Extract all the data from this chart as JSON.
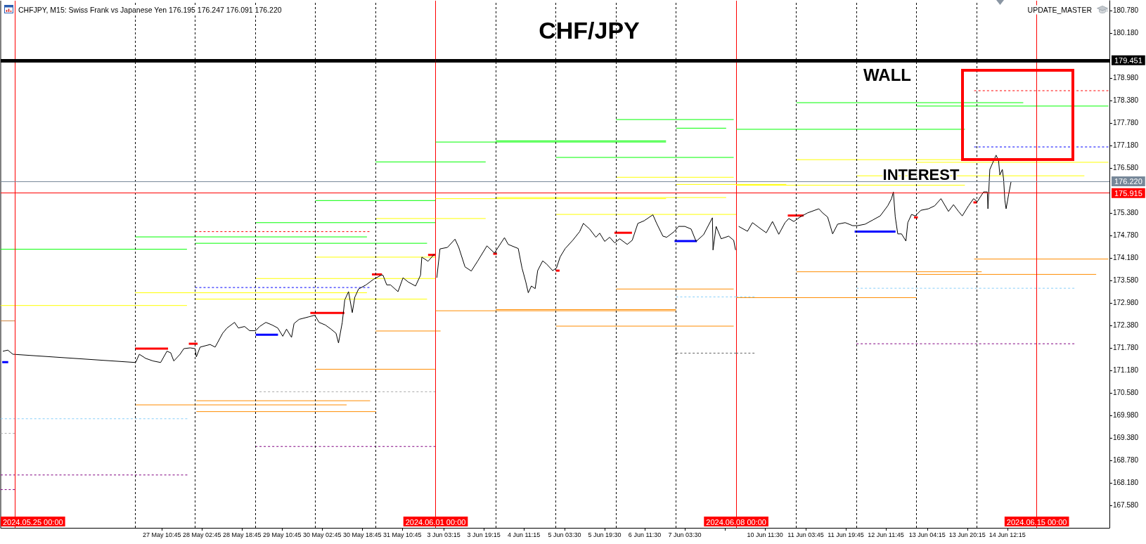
{
  "chart_data": [
    {
      "type": "line",
      "annotations": [
        "CHFJPY, M15: Swiss Frank vs Japanese Yen 176.195 176.247 176.091 176.220"
      ],
      "xlim": [
        "2024-05-24T18:24",
        "2024-06-01T00:00"
      ],
      "ylim": [
        166.98,
        181.04
      ],
      "tick_labels": "x",
      "grid": false,
      "marker": "none",
      "line_style": "solid",
      "xticks": [
        {
          "value": "2024-05-27T10:45",
          "label": "27 May 10:45"
        },
        {
          "value": "2024-05-28T02:45",
          "label": "28 May 02:45"
        },
        {
          "value": "2024-05-28T18:45",
          "label": "28 May 18:45"
        },
        {
          "value": "2024-05-29T10:45",
          "label": "29 May 10:45"
        },
        {
          "value": "2024-05-30T02:45",
          "label": "30 May 02:45"
        },
        {
          "value": "2024-05-30T18:45",
          "label": "30 May 18:45"
        },
        {
          "value": "2024-05-31T10:45",
          "label": "31 May 10:45"
        }
      ],
      "ref_lines": [
        {
          "axis": "x",
          "value": "2024-05-27T00:00",
          "color": "#000000",
          "line_style": "dashed"
        },
        {
          "axis": "x",
          "value": "2024-05-28T00:00",
          "color": "#000000",
          "line_style": "dashed"
        },
        {
          "axis": "x",
          "value": "2024-05-29T00:00",
          "color": "#000000",
          "line_style": "dashed"
        },
        {
          "axis": "x",
          "value": "2024-05-30T00:00",
          "color": "#000000",
          "line_style": "dashed"
        },
        {
          "axis": "x",
          "value": "2024-05-31T00:00",
          "color": "#000000",
          "line_style": "dashed"
        },
        {
          "axis": "x",
          "value": "2024-05-25T00:00",
          "label": "2024.05.25 00:00",
          "color": "#ff0000"
        },
        {
          "axis": "x",
          "value": "2024-06-01T00:00",
          "label": "2024.06.01 00:00",
          "color": "#ff0000"
        },
        {
          "axis": "y",
          "value": 179.451,
          "color": "#000000"
        },
        {
          "axis": "y",
          "value": 176.22,
          "color": "#778899"
        },
        {
          "axis": "y",
          "value": 175.915,
          "color": "#ff0000"
        }
      ],
      "series": [
        {
          "color": "#00ff00",
          "x": [
            "2024-05-24T18:24",
            "2024-05-27T20:45"
          ],
          "values": [
            174.41,
            174.41
          ]
        },
        {
          "color": "#00ff00",
          "x": [
            "2024-05-27T00:00",
            "2024-05-30T20:36"
          ],
          "values": [
            174.74,
            174.74
          ]
        },
        {
          "color": "#00ff00",
          "x": [
            "2024-05-28T00:00",
            "2024-05-31T20:36"
          ],
          "values": [
            174.57,
            174.57
          ]
        },
        {
          "color": "#00ff00",
          "x": [
            "2024-05-29T00:00",
            "2024-06-01T00:00"
          ],
          "values": [
            175.12,
            175.12
          ]
        },
        {
          "color": "#00ff00",
          "x": [
            "2024-05-30T00:00",
            "2024-06-01T00:00"
          ],
          "values": [
            175.71,
            175.71
          ]
        },
        {
          "color": "#00ff00",
          "x": [
            "2024-05-31T00:00",
            "2024-06-01T00:00"
          ],
          "values": [
            176.74,
            176.74
          ]
        },
        {
          "color": "#ffff00",
          "x": [
            "2024-05-24T18:24",
            "2024-05-27T20:45"
          ],
          "values": [
            172.91,
            172.91
          ]
        },
        {
          "color": "#ffff00",
          "x": [
            "2024-05-27T00:00",
            "2024-05-30T20:36"
          ],
          "values": [
            173.25,
            173.25
          ]
        },
        {
          "color": "#ffff00",
          "x": [
            "2024-05-28T00:00",
            "2024-05-31T20:36"
          ],
          "values": [
            173.08,
            173.08
          ]
        },
        {
          "color": "#ffff00",
          "x": [
            "2024-05-29T00:00",
            "2024-06-01T00:00"
          ],
          "values": [
            173.63,
            173.63
          ]
        },
        {
          "color": "#ffff00",
          "x": [
            "2024-05-30T00:00",
            "2024-06-01T00:00"
          ],
          "values": [
            174.2,
            174.2
          ]
        },
        {
          "color": "#ffff00",
          "x": [
            "2024-05-31T00:00",
            "2024-06-01T00:00"
          ],
          "values": [
            175.23,
            175.23
          ]
        },
        {
          "color": "#cd853f",
          "x": [
            "2024-05-24T18:24",
            "2024-05-25T00:00"
          ],
          "values": [
            172.5,
            172.5
          ]
        },
        {
          "color": "#ff8c00",
          "x": [
            "2024-05-31T00:00",
            "2024-06-01T00:00"
          ],
          "values": [
            172.23,
            172.23
          ]
        },
        {
          "color": "#ff8c00",
          "x": [
            "2024-05-30T00:00",
            "2024-06-01T00:00"
          ],
          "values": [
            171.21,
            171.21
          ]
        },
        {
          "color": "#ff8c00",
          "x": [
            "2024-05-28T00:30",
            "2024-05-30T21:54"
          ],
          "values": [
            170.37,
            170.37
          ]
        },
        {
          "color": "#ff8c00",
          "x": [
            "2024-05-27T00:00",
            "2024-05-30T12:30"
          ],
          "values": [
            170.26,
            170.26
          ]
        },
        {
          "color": "#ff8c00",
          "x": [
            "2024-05-28T00:30",
            "2024-05-31T00:12"
          ],
          "values": [
            170.08,
            170.08
          ]
        },
        {
          "color": "#ff0000",
          "line_style": "dashed",
          "x": [
            "2024-05-28T00:00",
            "2024-05-30T21:36"
          ],
          "values": [
            174.88,
            174.88
          ]
        },
        {
          "color": "#0000ff",
          "line_style": "dashed",
          "x": [
            "2024-05-28T00:00",
            "2024-05-30T21:36"
          ],
          "values": [
            173.39,
            173.39
          ]
        },
        {
          "color": "#87cefa",
          "line_style": "dashed",
          "x": [
            "2024-05-24T18:24",
            "2024-05-27T20:54"
          ],
          "values": [
            169.89,
            169.89
          ]
        },
        {
          "color": "#a9a9a9",
          "line_style": "dashed",
          "x": [
            "2024-05-24T18:24",
            "2024-05-25T00:00"
          ],
          "values": [
            169.5,
            169.5
          ]
        },
        {
          "color": "#a9a9a9",
          "line_style": "dashed",
          "x": [
            "2024-05-29T00:00",
            "2024-06-01T00:00"
          ],
          "values": [
            170.61,
            170.61
          ]
        },
        {
          "color": "#800080",
          "line_style": "dashed",
          "x": [
            "2024-05-29T00:00",
            "2024-06-01T00:00"
          ],
          "values": [
            169.15,
            169.15
          ]
        },
        {
          "color": "#800080",
          "line_style": "dashed",
          "x": [
            "2024-05-24T18:24",
            "2024-05-27T20:54"
          ],
          "values": [
            168.39,
            168.39
          ]
        },
        {
          "color": "#800080",
          "line_style": "dashed",
          "x": [
            "2024-05-24T18:24",
            "2024-05-25T00:00"
          ],
          "values": [
            168,
            168
          ]
        },
        {
          "color": "#0000ff",
          "x": [
            "2024-05-24T19:00",
            "2024-05-24T21:24"
          ],
          "values": [
            171.4,
            171.4
          ]
        },
        {
          "color": "#ff0000",
          "x": [
            "2024-05-27T00:00",
            "2024-05-27T13:12"
          ],
          "values": [
            171.76,
            171.76
          ]
        },
        {
          "color": "#ff0000",
          "x": [
            "2024-05-27T21:30",
            "2024-05-28T01:00"
          ],
          "values": [
            171.89,
            171.89
          ]
        },
        {
          "color": "#0000ff",
          "x": [
            "2024-05-29T00:12",
            "2024-05-29T09:06"
          ],
          "values": [
            172.13,
            172.13
          ]
        },
        {
          "color": "#ff0000",
          "x": [
            "2024-05-29T22:00",
            "2024-05-30T11:36"
          ],
          "values": [
            172.71,
            172.71
          ]
        },
        {
          "color": "#ff0000",
          "x": [
            "2024-05-30T22:36",
            "2024-05-31T02:36"
          ],
          "values": [
            173.74,
            173.74
          ]
        },
        {
          "color": "#ff0000",
          "x": [
            "2024-05-31T21:00",
            "2024-06-01T00:00"
          ],
          "values": [
            174.26,
            174.26
          ]
        },
        {
          "color": "#000000",
          "x": [
            "2024-05-24T19:15",
            "2024-05-24T21:15",
            "2024-05-24T23:15",
            "2024-05-27T00:15",
            "2024-05-27T01:45",
            "2024-05-27T04:15",
            "2024-05-27T07:15",
            "2024-05-27T10:15",
            "2024-05-27T12:45",
            "2024-05-27T14:15",
            "2024-05-27T15:30",
            "2024-05-27T18:00",
            "2024-05-27T19:30",
            "2024-05-27T22:00",
            "2024-05-28T00:00",
            "2024-05-28T00:30",
            "2024-05-28T02:00",
            "2024-05-28T06:00",
            "2024-05-28T08:00",
            "2024-05-28T11:00",
            "2024-05-28T12:45",
            "2024-05-28T15:45",
            "2024-05-28T17:15",
            "2024-05-28T19:45",
            "2024-05-28T21:45",
            "2024-05-29T00:15",
            "2024-05-29T01:45",
            "2024-05-29T04:15",
            "2024-05-29T06:45",
            "2024-05-29T09:00",
            "2024-05-29T11:00",
            "2024-05-29T12:30",
            "2024-05-29T14:30",
            "2024-05-29T15:30",
            "2024-05-29T17:30",
            "2024-05-29T21:30",
            "2024-05-29T23:45",
            "2024-05-30T01:30",
            "2024-05-30T04:00",
            "2024-05-30T06:15",
            "2024-05-30T08:15",
            "2024-05-30T09:15",
            "2024-05-30T10:45",
            "2024-05-30T11:45",
            "2024-05-30T13:15",
            "2024-05-30T14:45",
            "2024-05-30T15:45",
            "2024-05-30T17:15",
            "2024-05-30T20:15",
            "2024-05-30T23:15",
            "2024-05-31T02:15",
            "2024-05-31T03:00",
            "2024-05-31T04:30",
            "2024-05-31T06:00",
            "2024-05-31T09:00",
            "2024-05-31T11:00",
            "2024-05-31T13:00",
            "2024-05-31T16:00",
            "2024-05-31T18:00",
            "2024-05-31T18:30",
            "2024-05-31T21:00",
            "2024-05-31T23:30"
          ],
          "values": [
            171.69,
            171.72,
            171.61,
            171.39,
            171.61,
            171.5,
            171.43,
            171.39,
            171.69,
            171.65,
            171.43,
            171.61,
            171.76,
            171.78,
            171.76,
            171.54,
            171.8,
            171.87,
            171.8,
            172.17,
            172.31,
            172.46,
            172.31,
            172.35,
            172.24,
            172.24,
            172.35,
            172.46,
            172.39,
            172.31,
            172.09,
            172.28,
            172.06,
            172.43,
            172.54,
            172.61,
            172.65,
            172.46,
            172.39,
            172.28,
            172.17,
            171.91,
            172.46,
            173.06,
            173.28,
            172.72,
            173.13,
            173.35,
            173.46,
            173.61,
            173.72,
            173.72,
            173.46,
            173.46,
            173.28,
            173.65,
            173.54,
            173.43,
            173.72,
            174.2,
            174.09,
            174.28
          ]
        }
      ]
    },
    {
      "type": "line",
      "title": "CHF/JPY",
      "xlim": [
        "2024-06-03T00:00",
        "2024-06-08T00:00"
      ],
      "ylim": [
        166.98,
        181.04
      ],
      "tick_labels": "x",
      "grid": false,
      "marker": "none",
      "line_style": "solid",
      "xticks": [
        {
          "value": "2024-06-03T03:15",
          "label": "3 Jun 03:15"
        },
        {
          "value": "2024-06-03T19:15",
          "label": "3 Jun 19:15"
        },
        {
          "value": "2024-06-04T11:15",
          "label": "4 Jun 11:15"
        },
        {
          "value": "2024-06-05T03:30",
          "label": "5 Jun 03:30"
        },
        {
          "value": "2024-06-05T19:30",
          "label": "5 Jun 19:30"
        },
        {
          "value": "2024-06-06T11:30",
          "label": "6 Jun 11:30"
        },
        {
          "value": "2024-06-07T03:30",
          "label": "7 Jun 03:30"
        },
        {
          "value": "2024-06-07T19:30",
          "label": null
        }
      ],
      "ref_lines": [
        {
          "axis": "x",
          "value": "2024-06-04T00:00",
          "color": "#000000",
          "line_style": "dashed"
        },
        {
          "axis": "x",
          "value": "2024-06-05T00:00",
          "color": "#000000",
          "line_style": "dashed"
        },
        {
          "axis": "x",
          "value": "2024-06-06T00:00",
          "color": "#000000",
          "line_style": "dashed"
        },
        {
          "axis": "x",
          "value": "2024-06-07T00:00",
          "color": "#000000",
          "line_style": "dashed"
        },
        {
          "axis": "x",
          "value": "2024-06-08T00:00",
          "label": "2024.06.08 00:00",
          "color": "#ff0000"
        },
        {
          "axis": "y",
          "value": 179.451,
          "color": "#000000"
        },
        {
          "axis": "y",
          "value": 176.22,
          "color": "#778899"
        },
        {
          "axis": "y",
          "value": 175.915,
          "color": "#ff0000"
        }
      ],
      "series": [
        {
          "color": "#00ff00",
          "x": [
            "2024-06-03T00:00",
            "2024-06-03T20:00"
          ],
          "values": [
            176.74,
            176.74
          ]
        },
        {
          "color": "#00ff00",
          "x": [
            "2024-06-03T00:00",
            "2024-06-06T20:00"
          ],
          "values": [
            177.27,
            177.27
          ]
        },
        {
          "color": "#00ff00",
          "x": [
            "2024-06-04T00:00",
            "2024-06-06T20:00"
          ],
          "values": [
            177.3,
            177.3
          ]
        },
        {
          "color": "#00ff00",
          "x": [
            "2024-06-06T00:00",
            "2024-06-07T23:00"
          ],
          "values": [
            177.87,
            177.87
          ]
        },
        {
          "color": "#00ff00",
          "x": [
            "2024-06-07T00:00",
            "2024-06-07T20:00"
          ],
          "values": [
            177.64,
            177.64
          ]
        },
        {
          "color": "#00ff00",
          "x": [
            "2024-06-05T00:00",
            "2024-06-07T23:00"
          ],
          "values": [
            176.86,
            176.86
          ]
        },
        {
          "color": "#ffff00",
          "x": [
            "2024-06-03T00:00",
            "2024-06-03T20:00"
          ],
          "values": [
            175.23,
            175.23
          ]
        },
        {
          "color": "#ffff00",
          "x": [
            "2024-06-04T00:00",
            "2024-06-07T20:00"
          ],
          "values": [
            175.79,
            175.79
          ]
        },
        {
          "color": "#ffff00",
          "x": [
            "2024-06-03T00:00",
            "2024-06-06T20:00"
          ],
          "values": [
            175.76,
            175.76
          ]
        },
        {
          "color": "#ffff00",
          "x": [
            "2024-06-05T00:00",
            "2024-06-08T00:00"
          ],
          "values": [
            175.34,
            175.34
          ]
        },
        {
          "color": "#ffff00",
          "x": [
            "2024-06-06T00:00",
            "2024-06-07T23:00"
          ],
          "values": [
            176.33,
            176.33
          ]
        },
        {
          "color": "#ffff00",
          "x": [
            "2024-06-07T00:00",
            "2024-06-08T00:00"
          ],
          "values": [
            176.14,
            176.14
          ]
        },
        {
          "color": "#ff8c00",
          "x": [
            "2024-06-03T00:00",
            "2024-06-03T02:00"
          ],
          "values": [
            172.23,
            172.23
          ]
        },
        {
          "color": "#ff8c00",
          "x": [
            "2024-06-03T00:00",
            "2024-06-07T00:00"
          ],
          "values": [
            172.77,
            172.77
          ]
        },
        {
          "color": "#ff8c00",
          "x": [
            "2024-06-04T00:00",
            "2024-06-07T00:00"
          ],
          "values": [
            172.8,
            172.8
          ]
        },
        {
          "color": "#ff8c00",
          "x": [
            "2024-06-05T00:00",
            "2024-06-07T23:00"
          ],
          "values": [
            172.36,
            172.36
          ]
        },
        {
          "color": "#ff8c00",
          "x": [
            "2024-06-06T00:00",
            "2024-06-07T23:00"
          ],
          "values": [
            173.35,
            173.35
          ]
        },
        {
          "color": "#87cefa",
          "line_style": "dashed",
          "x": [
            "2024-06-07T00:00",
            "2024-06-08T00:00"
          ],
          "values": [
            173.14,
            173.14
          ]
        },
        {
          "color": "#606060",
          "line_style": "dashed",
          "x": [
            "2024-06-07T00:00",
            "2024-06-08T00:00"
          ],
          "values": [
            171.64,
            171.64
          ]
        },
        {
          "color": "#ff0000",
          "x": [
            "2024-06-03T23:00",
            "2024-06-04T00:30"
          ],
          "values": [
            174.29,
            174.29
          ]
        },
        {
          "color": "#ff0000",
          "x": [
            "2024-06-05T00:00",
            "2024-06-05T01:30"
          ],
          "values": [
            173.84,
            173.84
          ]
        },
        {
          "color": "#ff0000",
          "x": [
            "2024-06-05T23:24",
            "2024-06-06T06:24"
          ],
          "values": [
            174.85,
            174.85
          ]
        },
        {
          "color": "#0000ff",
          "x": [
            "2024-06-06T23:24",
            "2024-06-07T08:18"
          ],
          "values": [
            174.63,
            174.63
          ]
        },
        {
          "color": "#000000",
          "x": [
            "2024-06-03T00:30",
            "2024-06-03T01:45",
            "2024-06-03T04:45",
            "2024-06-03T07:45",
            "2024-06-03T09:15",
            "2024-06-03T11:45",
            "2024-06-03T14:15",
            "2024-06-03T16:45",
            "2024-06-03T20:30",
            "2024-06-03T23:30",
            "2024-06-04T03:30",
            "2024-06-04T05:00",
            "2024-06-04T09:00",
            "2024-06-04T10:30",
            "2024-06-04T12:00",
            "2024-06-04T13:00",
            "2024-06-04T14:15",
            "2024-06-04T15:45",
            "2024-06-04T16:45",
            "2024-06-04T18:45",
            "2024-06-04T20:15",
            "2024-06-04T22:45",
            "2024-06-05T00:15",
            "2024-06-05T01:45",
            "2024-06-05T03:45",
            "2024-06-05T06:45",
            "2024-06-05T09:30",
            "2024-06-05T11:00",
            "2024-06-05T13:30",
            "2024-06-05T16:00",
            "2024-06-05T17:30",
            "2024-06-05T19:30",
            "2024-06-05T21:30",
            "2024-06-05T23:30",
            "2024-06-06T01:30",
            "2024-06-06T04:30",
            "2024-06-06T06:30",
            "2024-06-06T08:45",
            "2024-06-06T11:15",
            "2024-06-06T14:45",
            "2024-06-06T16:15",
            "2024-06-06T18:45",
            "2024-06-06T20:15",
            "2024-06-06T23:15",
            "2024-06-07T01:00",
            "2024-06-07T03:30",
            "2024-06-07T06:00",
            "2024-06-07T08:00",
            "2024-06-07T11:00",
            "2024-06-07T14:30",
            "2024-06-07T14:45",
            "2024-06-07T16:00",
            "2024-06-07T18:00",
            "2024-06-07T21:00",
            "2024-06-07T23:00",
            "2024-06-07T23:45"
          ],
          "values": [
            173.65,
            174.42,
            174.46,
            174.68,
            174.46,
            173.94,
            173.83,
            174.09,
            174.5,
            174.31,
            174.72,
            174.54,
            174.43,
            173.91,
            173.54,
            173.25,
            173.43,
            173.36,
            173.84,
            174.1,
            174.02,
            173.84,
            173.91,
            174.21,
            174.43,
            174.65,
            174.88,
            175.1,
            174.95,
            174.73,
            174.84,
            174.62,
            174.73,
            174.58,
            174.69,
            174.54,
            174.65,
            175.1,
            175.17,
            175.33,
            175.1,
            174.76,
            174.73,
            174.88,
            175.02,
            175.02,
            174.95,
            174.62,
            174.8,
            175.25,
            174.39,
            175.02,
            174.69,
            174.76,
            174.65,
            174.39
          ]
        }
      ]
    },
    {
      "type": "line",
      "annotations": [
        "UPDATE_MASTER",
        "WALL",
        "INTEREST"
      ],
      "xlim": [
        "2024-06-10T00:00",
        "2024-06-16T05:00"
      ],
      "ylim": [
        166.98,
        181.04
      ],
      "grid": false,
      "marker": "none",
      "line_style": "solid",
      "xticks": [
        {
          "value": "2024-06-10T11:30",
          "label": "10 Jun 11:30"
        },
        {
          "value": "2024-06-11T03:45",
          "label": "11 Jun 03:45"
        },
        {
          "value": "2024-06-11T19:45",
          "label": "11 Jun 19:45"
        },
        {
          "value": "2024-06-12T11:45",
          "label": "12 Jun 11:45"
        },
        {
          "value": "2024-06-13T04:15",
          "label": "13 Jun 04:15"
        },
        {
          "value": "2024-06-13T20:15",
          "label": "13 Jun 20:15"
        },
        {
          "value": "2024-06-14T12:15",
          "label": "14 Jun 12:15"
        }
      ],
      "yticks": [
        {
          "value": 167.58,
          "label": "167.580"
        },
        {
          "value": 168.18,
          "label": "168.180"
        },
        {
          "value": 168.78,
          "label": "168.780"
        },
        {
          "value": 169.38,
          "label": "169.380"
        },
        {
          "value": 169.98,
          "label": "169.980"
        },
        {
          "value": 170.58,
          "label": "170.580"
        },
        {
          "value": 171.18,
          "label": "171.180"
        },
        {
          "value": 171.78,
          "label": "171.780"
        },
        {
          "value": 172.38,
          "label": "172.380"
        },
        {
          "value": 172.98,
          "label": "172.980"
        },
        {
          "value": 173.58,
          "label": "173.580"
        },
        {
          "value": 174.18,
          "label": "174.180"
        },
        {
          "value": 174.78,
          "label": "174.780"
        },
        {
          "value": 175.38,
          "label": "175.380"
        },
        {
          "value": 176.58,
          "label": "176.580"
        },
        {
          "value": 177.18,
          "label": "177.180"
        },
        {
          "value": 177.78,
          "label": "177.780"
        },
        {
          "value": 178.38,
          "label": "178.380"
        },
        {
          "value": 178.98,
          "label": "178.980"
        },
        {
          "value": 180.18,
          "label": "180.180"
        },
        {
          "value": 180.78,
          "label": "180.780"
        }
      ],
      "ref_lines": [
        {
          "axis": "x",
          "value": "2024-06-11T00:00",
          "color": "#000000",
          "line_style": "dashed"
        },
        {
          "axis": "x",
          "value": "2024-06-12T00:00",
          "color": "#000000",
          "line_style": "dashed"
        },
        {
          "axis": "x",
          "value": "2024-06-13T00:00",
          "color": "#000000",
          "line_style": "dashed"
        },
        {
          "axis": "x",
          "value": "2024-06-14T00:00",
          "color": "#000000",
          "line_style": "dashed"
        },
        {
          "axis": "x",
          "value": "2024-06-15T00:00",
          "label": "2024.06.15 00:00",
          "color": "#ff0000"
        },
        {
          "axis": "y",
          "value": 179.451,
          "label": "179.451",
          "color": "#000000"
        },
        {
          "axis": "y",
          "value": 176.22,
          "label": "176.220",
          "color": "#778899"
        },
        {
          "axis": "y",
          "value": 175.915,
          "label": "175.915",
          "color": "#ff0000"
        }
      ],
      "series": [
        {
          "color": "#00ff00",
          "x": [
            "2024-06-10T00:00",
            "2024-06-13T19:18"
          ],
          "values": [
            177.61,
            177.61
          ]
        },
        {
          "color": "#00ff00",
          "x": [
            "2024-06-11T00:00",
            "2024-06-14T18:36"
          ],
          "values": [
            178.32,
            178.32
          ]
        },
        {
          "color": "#00ff00",
          "x": [
            "2024-06-13T00:00",
            "2024-06-16T04:36"
          ],
          "values": [
            178.23,
            178.23
          ]
        },
        {
          "color": "#ffff00",
          "x": [
            "2024-06-10T00:00",
            "2024-06-10T20:00"
          ],
          "values": [
            176.14,
            176.14
          ]
        },
        {
          "color": "#ffff00",
          "x": [
            "2024-06-11T00:00",
            "2024-06-13T17:48"
          ],
          "values": [
            176.8,
            176.8
          ]
        },
        {
          "color": "#ffff00",
          "x": [
            "2024-06-13T00:00",
            "2024-06-16T04:36"
          ],
          "values": [
            176.73,
            176.73
          ]
        },
        {
          "color": "#ffff00",
          "x": [
            "2024-06-12T00:00",
            "2024-06-15T19:00"
          ],
          "values": [
            176.37,
            176.37
          ]
        },
        {
          "color": "#ffff00",
          "x": [
            "2024-06-10T00:00",
            "2024-06-13T19:18"
          ],
          "values": [
            176.12,
            176.12
          ]
        },
        {
          "color": "#ff8c00",
          "x": [
            "2024-06-10T00:00",
            "2024-06-13T00:00"
          ],
          "values": [
            173.12,
            173.12
          ]
        },
        {
          "color": "#ff8c00",
          "x": [
            "2024-06-11T00:00",
            "2024-06-14T02:00"
          ],
          "values": [
            173.81,
            173.81
          ]
        },
        {
          "color": "#ff8c00",
          "x": [
            "2024-06-13T00:00",
            "2024-06-15T23:42"
          ],
          "values": [
            173.74,
            173.74
          ]
        },
        {
          "color": "#ff8c00",
          "x": [
            "2024-06-13T23:00",
            "2024-06-16T04:36"
          ],
          "values": [
            174.15,
            174.15
          ]
        },
        {
          "color": "#ff0000",
          "line_style": "dashed",
          "x": [
            "2024-06-13T23:00",
            "2024-06-16T04:36"
          ],
          "values": [
            178.64,
            178.64
          ]
        },
        {
          "color": "#0000ff",
          "line_style": "dashed",
          "x": [
            "2024-06-13T23:00",
            "2024-06-16T04:36"
          ],
          "values": [
            177.14,
            177.14
          ]
        },
        {
          "color": "#87cefa",
          "line_style": "dashed",
          "x": [
            "2024-06-10T00:00",
            "2024-06-10T07:18"
          ],
          "values": [
            173.14,
            173.14
          ]
        },
        {
          "color": "#87cefa",
          "line_style": "dashed",
          "x": [
            "2024-06-12T00:00",
            "2024-06-15T15:00"
          ],
          "values": [
            173.37,
            173.37
          ]
        },
        {
          "color": "#800080",
          "line_style": "dashed",
          "x": [
            "2024-06-12T00:00",
            "2024-06-15T15:00"
          ],
          "values": [
            171.89,
            171.89
          ]
        },
        {
          "color": "#606060",
          "line_style": "dashed",
          "x": [
            "2024-06-10T00:00",
            "2024-06-10T07:18"
          ],
          "values": [
            171.64,
            171.64
          ]
        },
        {
          "color": "#ff0000",
          "x": [
            "2024-06-10T20:36",
            "2024-06-11T02:54"
          ],
          "values": [
            175.31,
            175.31
          ]
        },
        {
          "color": "#0000ff",
          "x": [
            "2024-06-11T23:18",
            "2024-06-12T15:36"
          ],
          "values": [
            174.88,
            174.88
          ]
        },
        {
          "color": "#ff0000",
          "x": [
            "2024-06-12T23:00",
            "2024-06-13T00:30"
          ],
          "values": [
            175.26,
            175.26
          ]
        },
        {
          "color": "#ff0000",
          "x": [
            "2024-06-13T22:42",
            "2024-06-14T00:12"
          ],
          "values": [
            175.66,
            175.66
          ]
        },
        {
          "color": "#000000",
          "x": [
            "2024-06-10T01:00",
            "2024-06-10T04:30",
            "2024-06-10T06:30",
            "2024-06-10T09:30",
            "2024-06-10T12:00",
            "2024-06-10T14:30",
            "2024-06-10T17:00",
            "2024-06-10T19:30",
            "2024-06-10T21:00",
            "2024-06-10T23:00",
            "2024-06-11T01:30",
            "2024-06-11T04:30",
            "2024-06-11T09:00",
            "2024-06-11T10:30",
            "2024-06-11T12:30",
            "2024-06-11T14:30",
            "2024-06-11T16:30",
            "2024-06-11T19:30",
            "2024-06-11T22:30",
            "2024-06-12T00:30",
            "2024-06-12T03:30",
            "2024-06-12T06:30",
            "2024-06-12T09:30",
            "2024-06-12T12:30",
            "2024-06-12T14:00",
            "2024-06-12T14:45",
            "2024-06-12T15:30",
            "2024-06-12T16:30",
            "2024-06-12T18:00",
            "2024-06-12T19:45",
            "2024-06-12T20:30",
            "2024-06-12T22:00",
            "2024-06-12T23:30",
            "2024-06-13T01:45",
            "2024-06-13T04:45",
            "2024-06-13T07:15",
            "2024-06-13T09:45",
            "2024-06-13T12:45",
            "2024-06-13T14:45",
            "2024-06-13T16:45",
            "2024-06-13T18:15",
            "2024-06-13T20:45",
            "2024-06-13T22:45",
            "2024-06-14T00:15",
            "2024-06-14T02:45",
            "2024-06-14T04:15",
            "2024-06-14T04:30",
            "2024-06-14T05:15",
            "2024-06-14T07:45",
            "2024-06-14T08:45",
            "2024-06-14T09:15",
            "2024-06-14T10:15",
            "2024-06-14T10:45",
            "2024-06-14T11:15",
            "2024-06-14T11:45",
            "2024-06-14T12:45",
            "2024-06-14T13:45"
          ],
          "values": [
            175.02,
            174.89,
            175.12,
            174.97,
            174.85,
            175.15,
            174.81,
            175.12,
            175.23,
            175.15,
            175.27,
            175.38,
            175.49,
            175.38,
            175.27,
            174.82,
            175.08,
            175.12,
            175.04,
            175.04,
            175.08,
            175.19,
            175.3,
            175.57,
            175.76,
            175.94,
            175.27,
            174.82,
            174.82,
            174.63,
            175.12,
            175.34,
            175.3,
            175.45,
            175.49,
            175.57,
            175.76,
            175.42,
            175.6,
            175.42,
            175.3,
            175.57,
            175.76,
            175.68,
            175.94,
            175.94,
            175.49,
            176.54,
            176.92,
            176.77,
            176.39,
            176.54,
            176.28,
            175.72,
            175.49,
            175.87,
            176.22
          ]
        }
      ]
    }
  ]
}
